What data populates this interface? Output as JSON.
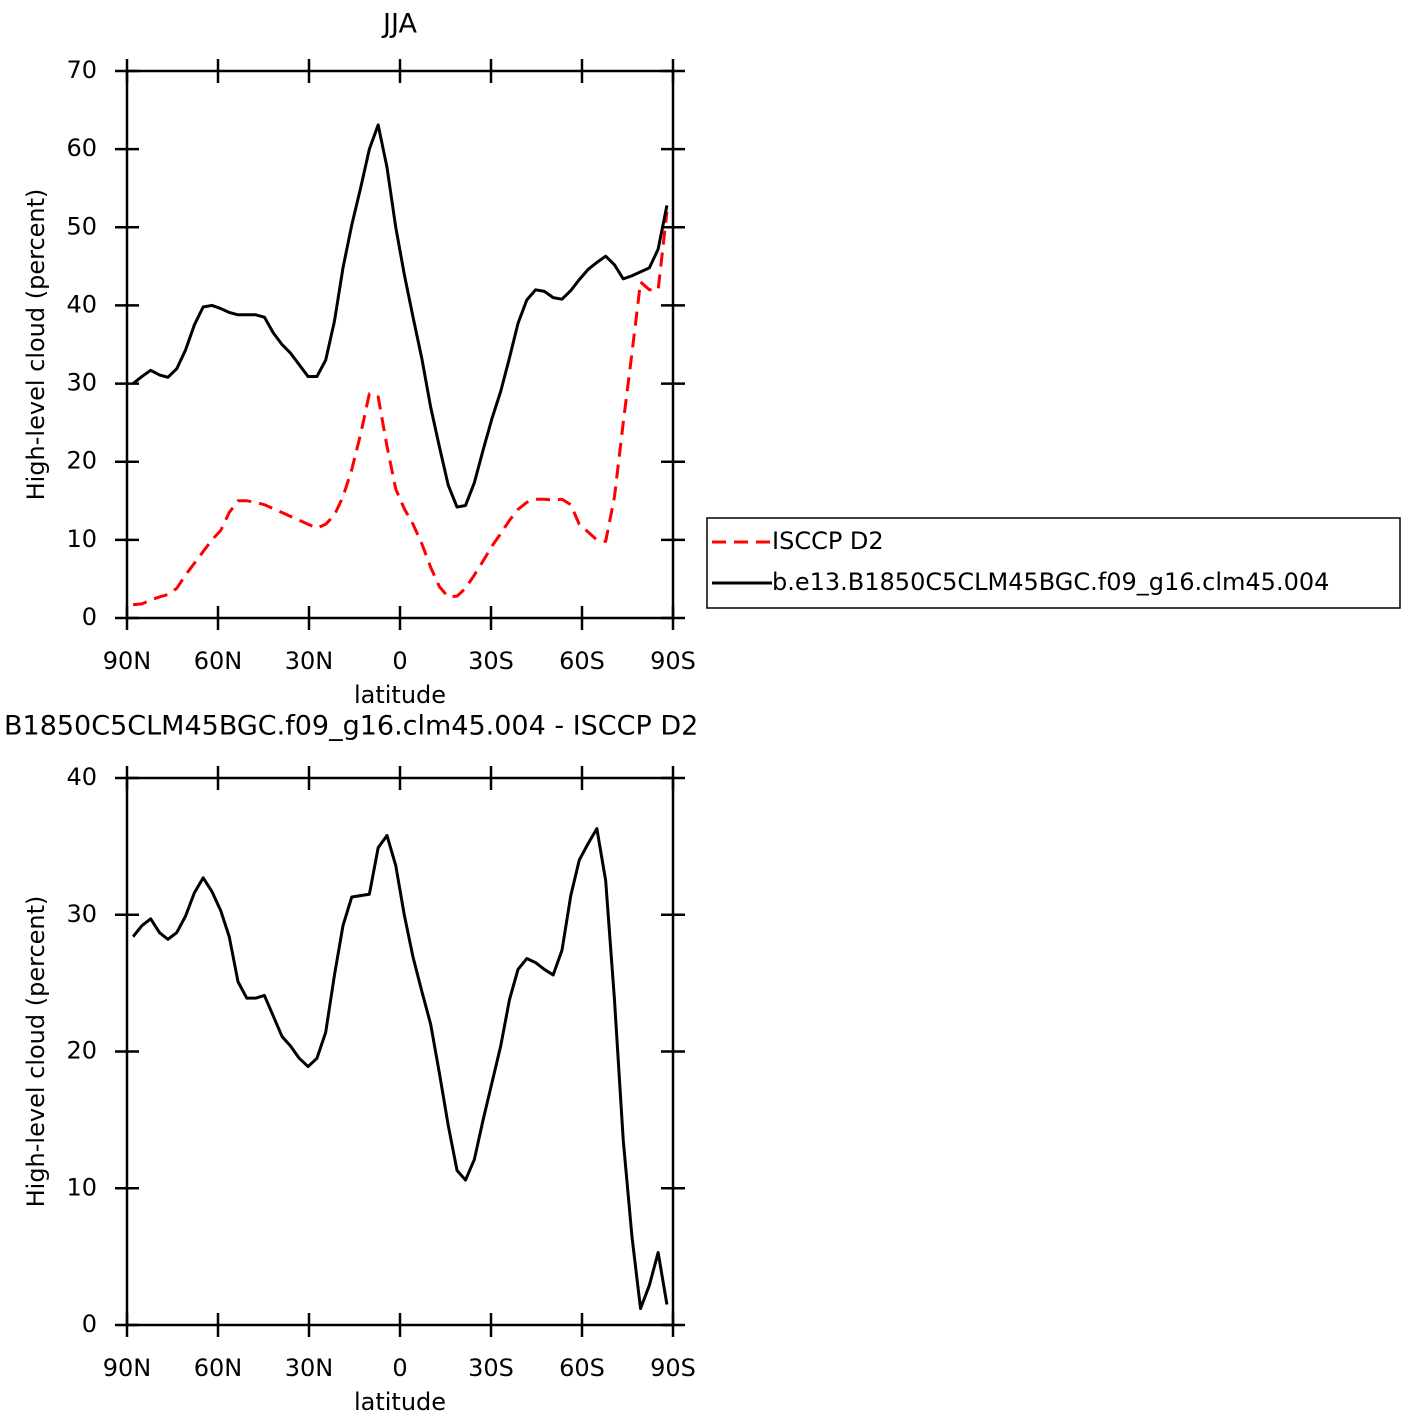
{
  "chart_data": [
    {
      "type": "line",
      "title": "JJA",
      "xlabel": "latitude",
      "ylabel": "High-level cloud (percent)",
      "x": [
        88.0,
        85.1,
        82.2,
        79.3,
        76.5,
        73.6,
        70.7,
        67.8,
        64.9,
        62.0,
        59.1,
        56.3,
        53.4,
        50.5,
        47.6,
        44.7,
        41.8,
        38.9,
        36.1,
        33.2,
        30.3,
        27.4,
        24.5,
        21.6,
        18.8,
        15.9,
        13.0,
        10.1,
        7.2,
        4.3,
        1.4,
        -1.4,
        -4.3,
        -7.2,
        -10.1,
        -13.0,
        -15.9,
        -18.8,
        -21.6,
        -24.5,
        -27.4,
        -30.3,
        -33.2,
        -36.1,
        -38.9,
        -41.8,
        -44.7,
        -47.6,
        -50.5,
        -53.4,
        -56.3,
        -59.1,
        -62.0,
        -64.9,
        -67.8,
        -70.7,
        -73.6,
        -76.5,
        -79.3,
        -82.2,
        -85.1,
        -88.0
      ],
      "xlim": [
        90,
        -90
      ],
      "xticks": [
        {
          "value": 90,
          "label": "90N"
        },
        {
          "value": 60,
          "label": "60N"
        },
        {
          "value": 30,
          "label": "30N"
        },
        0,
        {
          "value": -30,
          "label": "30S"
        },
        {
          "value": -60,
          "label": "60S"
        },
        {
          "value": -90,
          "label": "90S"
        }
      ],
      "ylim": [
        0,
        70
      ],
      "yticks": [
        0,
        10,
        20,
        30,
        40,
        50,
        60,
        70
      ],
      "legend": "right",
      "series": [
        {
          "name": "ISCCP D2",
          "color": "#ff0000",
          "dashed": true,
          "values": [
            1.7,
            1.8,
            2.3,
            2.7,
            3.0,
            3.8,
            5.5,
            7.0,
            8.5,
            10.0,
            11.2,
            13.5,
            15.0,
            15.0,
            14.8,
            14.5,
            14.0,
            13.5,
            13.0,
            12.5,
            12.0,
            11.5,
            12.0,
            13.2,
            15.5,
            19.0,
            23.5,
            28.7,
            28.3,
            22.0,
            16.5,
            14.0,
            12.0,
            9.5,
            6.5,
            4.0,
            2.7,
            2.8,
            3.8,
            5.5,
            7.3,
            9.2,
            10.8,
            12.5,
            13.9,
            14.8,
            15.2,
            15.2,
            15.1,
            15.2,
            14.5,
            12.0,
            11.0,
            10.0,
            9.8,
            15.5,
            25.0,
            34.0,
            43.0,
            42.0,
            42.0,
            52.0
          ]
        },
        {
          "name": "b.e13.B1850C5CLM45BGC.f09_g16.clm45.004",
          "color": "#000000",
          "dashed": false,
          "values": [
            30.0,
            30.9,
            31.7,
            31.1,
            30.8,
            31.9,
            34.3,
            37.5,
            39.8,
            40.0,
            39.6,
            39.1,
            38.8,
            38.8,
            38.8,
            38.5,
            36.5,
            35.0,
            33.9,
            32.4,
            30.9,
            30.9,
            33.0,
            38.0,
            44.8,
            50.3,
            55.0,
            60.0,
            63.1,
            57.7,
            50.0,
            44.0,
            38.5,
            33.2,
            27.0,
            21.9,
            17.0,
            14.2,
            14.4,
            17.3,
            21.5,
            25.5,
            29.0,
            33.3,
            37.7,
            40.7,
            42.0,
            41.8,
            41.0,
            40.8,
            41.9,
            43.3,
            44.6,
            45.5,
            46.3,
            45.2,
            43.4,
            43.8,
            44.3,
            44.8,
            47.2,
            52.8
          ]
        }
      ]
    },
    {
      "type": "line",
      "title": "B1850C5CLM45BGC.f09_g16.clm45.004 - ISCCP D2",
      "xlabel": "latitude",
      "ylabel": "High-level cloud (percent)",
      "x": [
        88.0,
        85.1,
        82.2,
        79.3,
        76.5,
        73.6,
        70.7,
        67.8,
        64.9,
        62.0,
        59.1,
        56.3,
        53.4,
        50.5,
        47.6,
        44.7,
        41.8,
        38.9,
        36.1,
        33.2,
        30.3,
        27.4,
        24.5,
        21.6,
        18.8,
        15.9,
        13.0,
        10.1,
        7.2,
        4.3,
        1.4,
        -1.4,
        -4.3,
        -7.2,
        -10.1,
        -13.0,
        -15.9,
        -18.8,
        -21.6,
        -24.5,
        -27.4,
        -30.3,
        -33.2,
        -36.1,
        -38.9,
        -41.8,
        -44.7,
        -47.6,
        -50.5,
        -53.4,
        -56.3,
        -59.1,
        -62.0,
        -64.9,
        -67.8,
        -70.7,
        -73.6,
        -76.5,
        -79.3,
        -82.2,
        -85.1,
        -88.0
      ],
      "xlim": [
        90,
        -90
      ],
      "xticks": [
        {
          "value": 90,
          "label": "90N"
        },
        {
          "value": 60,
          "label": "60N"
        },
        {
          "value": 30,
          "label": "30N"
        },
        0,
        {
          "value": -30,
          "label": "30S"
        },
        {
          "value": -60,
          "label": "60S"
        },
        {
          "value": -90,
          "label": "90S"
        }
      ],
      "ylim": [
        0,
        40
      ],
      "yticks": [
        0,
        10,
        20,
        30,
        40
      ],
      "series": [
        {
          "color": "#000000",
          "dashed": false,
          "values": [
            28.4,
            29.2,
            29.7,
            28.7,
            28.2,
            28.7,
            29.9,
            31.6,
            32.7,
            31.7,
            30.3,
            28.4,
            25.1,
            23.9,
            23.9,
            24.1,
            22.6,
            21.1,
            20.4,
            19.5,
            18.9,
            19.5,
            21.4,
            25.6,
            29.2,
            31.3,
            31.4,
            31.5,
            34.9,
            35.8,
            33.6,
            30.0,
            26.9,
            24.4,
            22.0,
            18.4,
            14.6,
            11.3,
            10.6,
            12.1,
            15.0,
            17.7,
            20.4,
            23.8,
            26.0,
            26.8,
            26.5,
            26.0,
            25.6,
            27.4,
            31.4,
            34.0,
            35.2,
            36.3,
            32.5,
            23.8,
            13.5,
            6.4,
            1.2,
            2.9,
            5.3,
            1.5
          ]
        }
      ]
    }
  ]
}
